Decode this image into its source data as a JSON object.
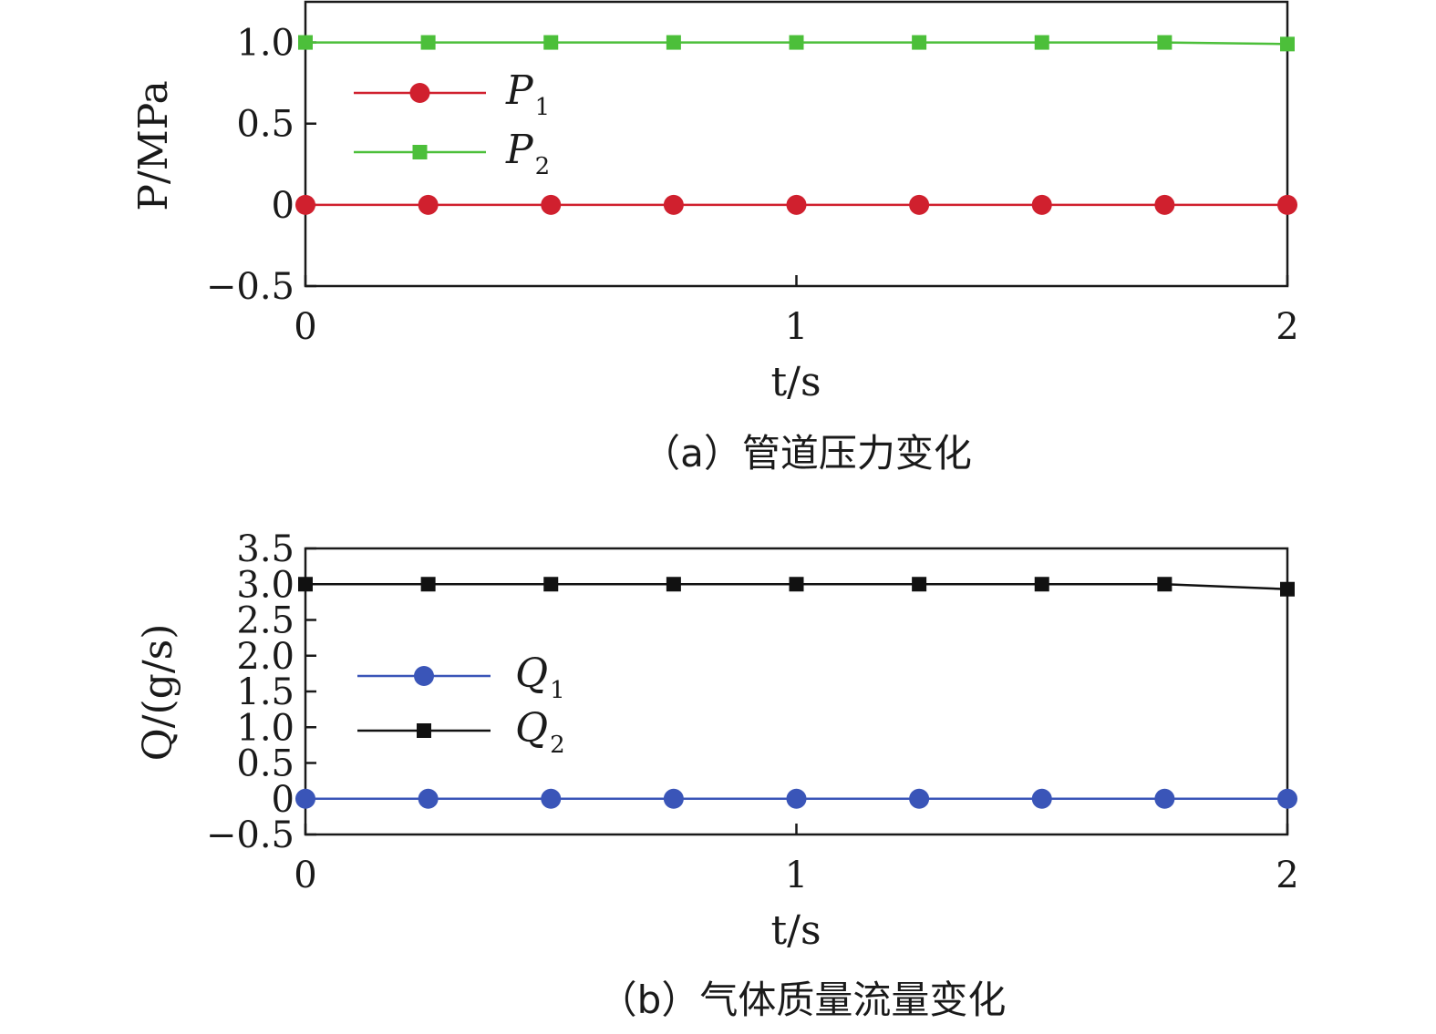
{
  "chart_data": [
    {
      "type": "line",
      "caption": "（a）管道压力变化",
      "xlabel": "t/s",
      "ylabel": "P/MPa",
      "xlim": [
        0,
        2
      ],
      "ylim": [
        -0.5,
        1.25
      ],
      "xticks": [
        "0",
        "1",
        "2"
      ],
      "yticks": [
        "1.0",
        "0.5",
        "0",
        "−0.5"
      ],
      "grid": false,
      "legend_position": "upper-left",
      "x": [
        0,
        0.25,
        0.5,
        0.75,
        1.0,
        1.25,
        1.5,
        1.75,
        2.0
      ],
      "series": [
        {
          "name": "P1",
          "label_main": "P",
          "label_sub": "1",
          "marker": "circle",
          "color": "#d0202e",
          "values": [
            0,
            0,
            0,
            0,
            0,
            0,
            0,
            0,
            0
          ]
        },
        {
          "name": "P2",
          "label_main": "P",
          "label_sub": "2",
          "marker": "square",
          "color": "#4cbf3a",
          "values": [
            1.0,
            1.0,
            1.0,
            1.0,
            1.0,
            1.0,
            1.0,
            1.0,
            0.99
          ]
        }
      ]
    },
    {
      "type": "line",
      "caption": "（b）气体质量流量变化",
      "xlabel": "t/s",
      "ylabel": "Q/(g/s)",
      "xlim": [
        0,
        2
      ],
      "ylim": [
        -0.5,
        3.5
      ],
      "xticks": [
        "0",
        "1",
        "2"
      ],
      "yticks": [
        "3.5",
        "3.0",
        "2.5",
        "2.0",
        "1.5",
        "1.0",
        "0.5",
        "0",
        "−0.5"
      ],
      "grid": false,
      "legend_position": "center-left",
      "x": [
        0,
        0.25,
        0.5,
        0.75,
        1.0,
        1.25,
        1.5,
        1.75,
        2.0
      ],
      "series": [
        {
          "name": "Q1",
          "label_main": "Q",
          "label_sub": "1",
          "marker": "circle",
          "color": "#3a55b8",
          "values": [
            0,
            0,
            0,
            0,
            0,
            0,
            0,
            0,
            0
          ]
        },
        {
          "name": "Q2",
          "label_main": "Q",
          "label_sub": "2",
          "marker": "square",
          "color": "#111111",
          "values": [
            3.0,
            3.0,
            3.0,
            3.0,
            3.0,
            3.0,
            3.0,
            3.0,
            2.93
          ]
        }
      ]
    }
  ]
}
